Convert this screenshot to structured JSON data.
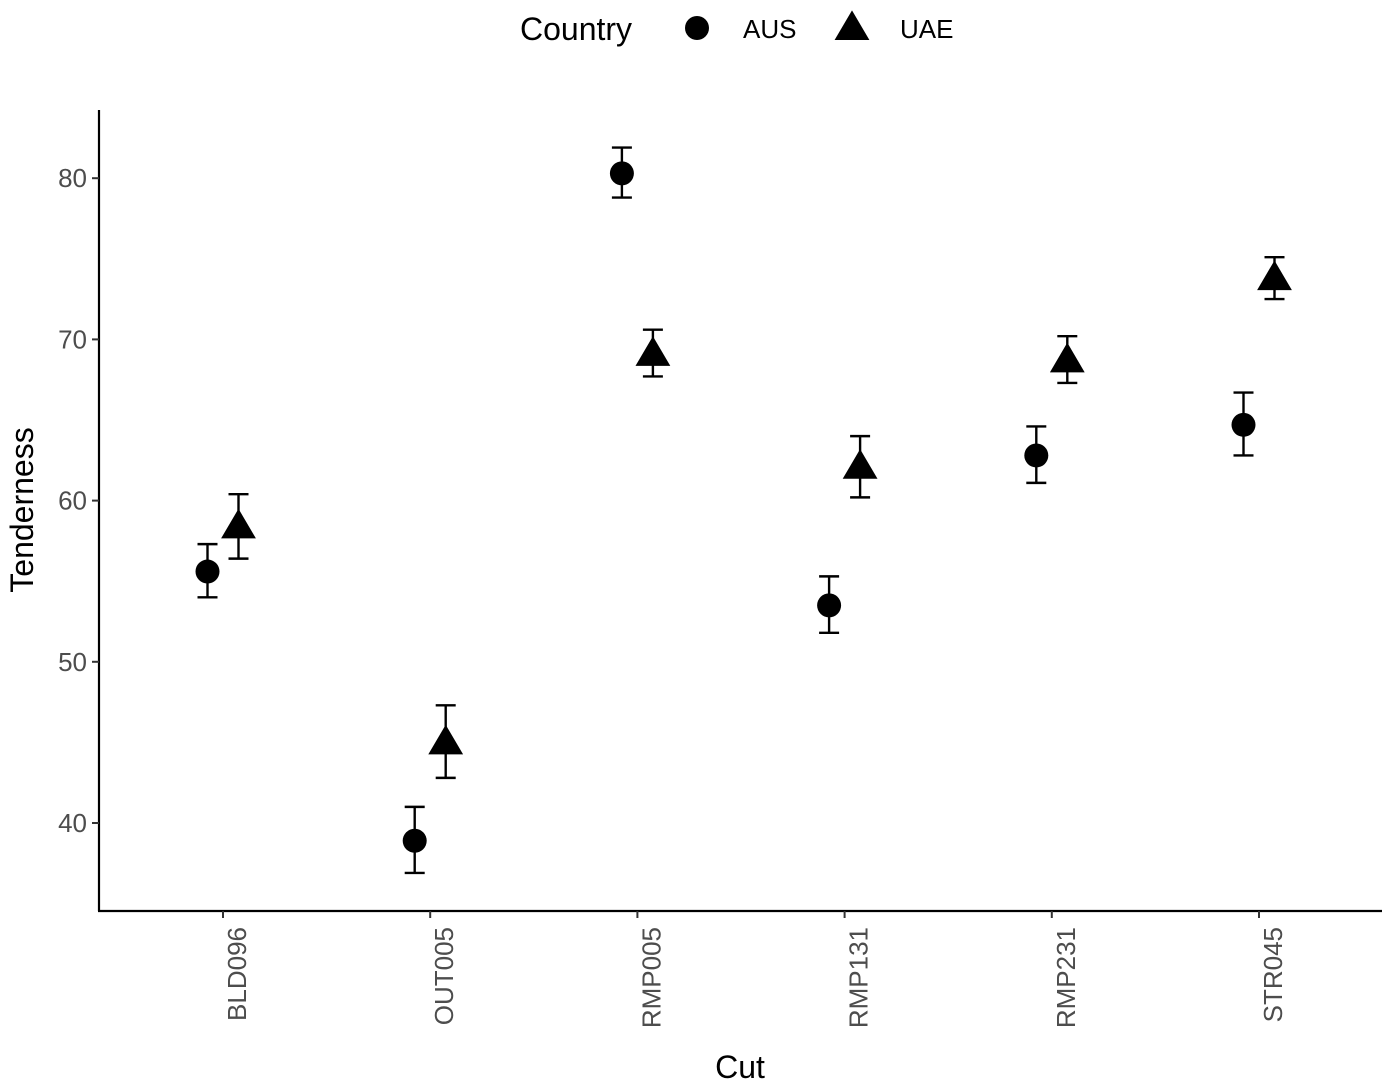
{
  "chart_data": {
    "type": "scatter",
    "title": "",
    "xlabel": "Cut",
    "ylabel": "Tenderness",
    "categories": [
      "BLD096",
      "OUT005",
      "RMP005",
      "RMP131",
      "RMP231",
      "STR045"
    ],
    "ylim": [
      34.5,
      84
    ],
    "yticks": [
      40,
      50,
      60,
      70,
      80
    ],
    "grid": false,
    "legend": {
      "title": "Country",
      "placement": "top",
      "entries": [
        {
          "label": "AUS",
          "shape": "circle"
        },
        {
          "label": "UAE",
          "shape": "triangle"
        }
      ]
    },
    "series": [
      {
        "name": "AUS",
        "shape": "circle",
        "values": [
          55.6,
          38.9,
          80.3,
          53.5,
          62.8,
          64.7
        ],
        "err_low": [
          54.0,
          36.9,
          78.8,
          51.8,
          61.1,
          62.8
        ],
        "err_high": [
          57.3,
          41.0,
          81.9,
          55.3,
          64.6,
          66.7
        ]
      },
      {
        "name": "UAE",
        "shape": "triangle",
        "values": [
          58.4,
          45.0,
          69.1,
          62.1,
          68.7,
          73.8
        ],
        "err_low": [
          56.4,
          42.8,
          67.7,
          60.2,
          67.3,
          72.5
        ],
        "err_high": [
          60.4,
          47.3,
          70.6,
          64.0,
          70.2,
          75.1
        ]
      }
    ],
    "colors": {
      "marker": "#000000",
      "axis": "#000000",
      "tick_text": "#4d4d4d"
    }
  }
}
